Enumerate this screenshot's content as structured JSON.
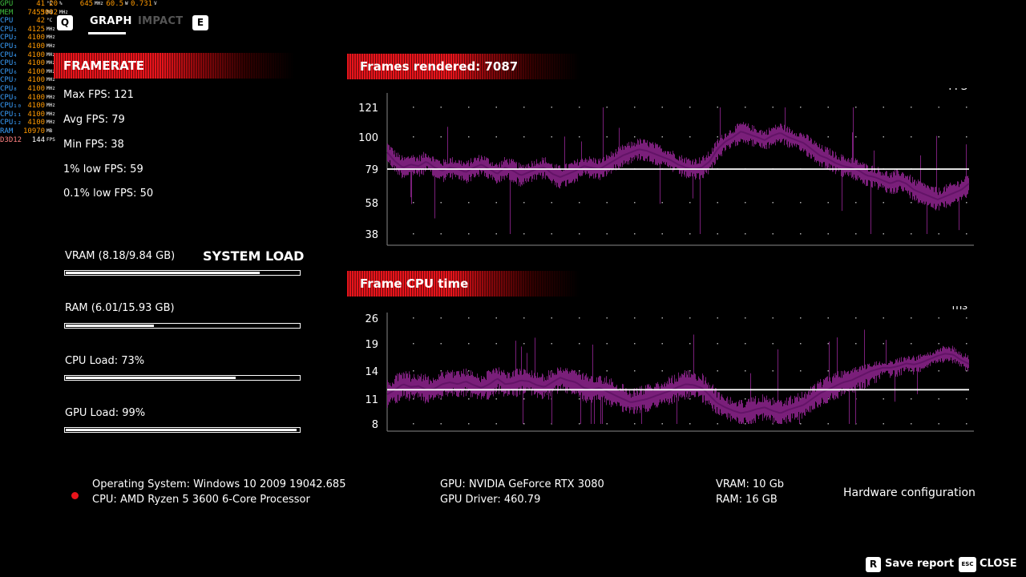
{
  "osd": {
    "rows": [
      {
        "label": "GPU",
        "label_color": "#3fbf3f",
        "v1": "41",
        "u1": "°C",
        "v2": "20",
        "u2": "%",
        "v3": "645",
        "u3": "MHz",
        "v4": "60.5",
        "u4": "W",
        "v5": "0.731",
        "u5": "V",
        "val_color": "#ff9900"
      },
      {
        "label": "MEM",
        "label_color": "#3fbf3f",
        "v1": "7453",
        "u1": "MB",
        "v2": "5002",
        "u2": "MHz",
        "v3": "",
        "u3": "",
        "v4": "",
        "u4": "",
        "v5": "",
        "u5": "",
        "val_color": "#ff9900"
      },
      {
        "label": "CPU",
        "label_color": "#3aa0ff",
        "v1": "42",
        "u1": "°C",
        "v2": "",
        "u2": "",
        "v3": "",
        "u3": "",
        "v4": "",
        "u4": "",
        "v5": "",
        "u5": "",
        "val_color": "#ff9900"
      },
      {
        "label": "CPU₁",
        "label_color": "#3aa0ff",
        "v1": "4125",
        "u1": "MHz",
        "v2": "",
        "u2": "",
        "v3": "",
        "u3": "",
        "v4": "",
        "u4": "",
        "v5": "",
        "u5": "",
        "val_color": "#ff9900"
      },
      {
        "label": "CPU₂",
        "label_color": "#3aa0ff",
        "v1": "4100",
        "u1": "MHz",
        "v2": "",
        "u2": "",
        "v3": "",
        "u3": "",
        "v4": "",
        "u4": "",
        "v5": "",
        "u5": "",
        "val_color": "#ff9900"
      },
      {
        "label": "CPU₃",
        "label_color": "#3aa0ff",
        "v1": "4100",
        "u1": "MHz",
        "v2": "",
        "u2": "",
        "v3": "",
        "u3": "",
        "v4": "",
        "u4": "",
        "v5": "",
        "u5": "",
        "val_color": "#ff9900"
      },
      {
        "label": "CPU₄",
        "label_color": "#3aa0ff",
        "v1": "4100",
        "u1": "MHz",
        "v2": "",
        "u2": "",
        "v3": "",
        "u3": "",
        "v4": "",
        "u4": "",
        "v5": "",
        "u5": "",
        "val_color": "#ff9900"
      },
      {
        "label": "CPU₅",
        "label_color": "#3aa0ff",
        "v1": "4100",
        "u1": "MHz",
        "v2": "",
        "u2": "",
        "v3": "",
        "u3": "",
        "v4": "",
        "u4": "",
        "v5": "",
        "u5": "",
        "val_color": "#ff9900"
      },
      {
        "label": "CPU₆",
        "label_color": "#3aa0ff",
        "v1": "4100",
        "u1": "MHz",
        "v2": "",
        "u2": "",
        "v3": "",
        "u3": "",
        "v4": "",
        "u4": "",
        "v5": "",
        "u5": "",
        "val_color": "#ff9900"
      },
      {
        "label": "CPU₇",
        "label_color": "#3aa0ff",
        "v1": "4100",
        "u1": "MHz",
        "v2": "",
        "u2": "",
        "v3": "",
        "u3": "",
        "v4": "",
        "u4": "",
        "v5": "",
        "u5": "",
        "val_color": "#ff9900"
      },
      {
        "label": "CPU₈",
        "label_color": "#3aa0ff",
        "v1": "4100",
        "u1": "MHz",
        "v2": "",
        "u2": "",
        "v3": "",
        "u3": "",
        "v4": "",
        "u4": "",
        "v5": "",
        "u5": "",
        "val_color": "#ff9900"
      },
      {
        "label": "CPU₉",
        "label_color": "#3aa0ff",
        "v1": "4100",
        "u1": "MHz",
        "v2": "",
        "u2": "",
        "v3": "",
        "u3": "",
        "v4": "",
        "u4": "",
        "v5": "",
        "u5": "",
        "val_color": "#ff9900"
      },
      {
        "label": "CPU₁₀",
        "label_color": "#3aa0ff",
        "v1": "4100",
        "u1": "MHz",
        "v2": "",
        "u2": "",
        "v3": "",
        "u3": "",
        "v4": "",
        "u4": "",
        "v5": "",
        "u5": "",
        "val_color": "#ff9900"
      },
      {
        "label": "CPU₁₁",
        "label_color": "#3aa0ff",
        "v1": "4100",
        "u1": "MHz",
        "v2": "",
        "u2": "",
        "v3": "",
        "u3": "",
        "v4": "",
        "u4": "",
        "v5": "",
        "u5": "",
        "val_color": "#ff9900"
      },
      {
        "label": "CPU₁₂",
        "label_color": "#3aa0ff",
        "v1": "4100",
        "u1": "MHz",
        "v2": "",
        "u2": "",
        "v3": "",
        "u3": "",
        "v4": "",
        "u4": "",
        "v5": "",
        "u5": "",
        "val_color": "#ff9900"
      },
      {
        "label": "RAM",
        "label_color": "#3aa0ff",
        "v1": "10970",
        "u1": "MB",
        "v2": "",
        "u2": "",
        "v3": "",
        "u3": "",
        "v4": "",
        "u4": "",
        "v5": "",
        "u5": "",
        "val_color": "#ff9900"
      },
      {
        "label": "D3D12",
        "label_color": "#ff8080",
        "v1": "144",
        "u1": "FPS",
        "v2": "",
        "u2": "",
        "v3": "",
        "u3": "",
        "v4": "",
        "u4": "",
        "v5": "",
        "u5": "",
        "val_color": "#ffffff"
      }
    ]
  },
  "tabs": {
    "prev_key": "Q",
    "graph": "GRAPH",
    "impact": "IMPACT",
    "next_key": "E"
  },
  "framerate": {
    "title": "FRAMERATE",
    "max": "Max FPS: 121",
    "avg": "Avg FPS: 79",
    "min": "Min FPS: 38",
    "low1": "1% low FPS: 59",
    "low01": "0.1% low FPS: 50"
  },
  "system_load": {
    "title": "SYSTEM LOAD",
    "items": [
      {
        "label": "VRAM (8.18/9.84 GB)",
        "fraction": 0.831
      },
      {
        "label": "RAM (6.01/15.93 GB)",
        "fraction": 0.377
      },
      {
        "label": "CPU Load: 73%",
        "fraction": 0.73
      },
      {
        "label": "GPU Load: 99%",
        "fraction": 0.99
      }
    ]
  },
  "colors": {
    "accent_red": "#e8141b",
    "graph_line": "#7a1f7a",
    "status_dot": "#e8141b"
  },
  "chart_data": [
    {
      "type": "line",
      "title": "Frames rendered: 7087",
      "ylabel": "FPS",
      "yticks": [
        38,
        58,
        79,
        100,
        121
      ],
      "ylim": [
        38,
        121
      ],
      "grid": "dotted",
      "average_line": 79,
      "series": [
        {
          "values": [
            90,
            84,
            80,
            82,
            81,
            84,
            80,
            78,
            80,
            79,
            77,
            80,
            82,
            79,
            76,
            80,
            78,
            75,
            77,
            79,
            80,
            76,
            74,
            76,
            78,
            81,
            80,
            79,
            82,
            85,
            88,
            90,
            92,
            91,
            89,
            87,
            85,
            82,
            80,
            79,
            80,
            84,
            92,
            97,
            100,
            104,
            102,
            100,
            98,
            101,
            103,
            100,
            98,
            96,
            92,
            88,
            86,
            83,
            81,
            80,
            78,
            75,
            74,
            72,
            70,
            72,
            70,
            66,
            64,
            62,
            60,
            62,
            64,
            66,
            70
          ]
        }
      ]
    },
    {
      "type": "line",
      "title": "Frame CPU time",
      "ylabel": "ms",
      "yticks": [
        8,
        11,
        14,
        19,
        26
      ],
      "ylim": [
        8,
        26
      ],
      "grid": "dotted",
      "average_line": 12,
      "series": [
        {
          "values": [
            11.5,
            12,
            12.6,
            12.3,
            12.4,
            12,
            12.1,
            12.6,
            12.8,
            12.6,
            12.9,
            12.5,
            12.2,
            12.6,
            13.2,
            12.6,
            12.7,
            13,
            12.9,
            12.5,
            12.3,
            12.8,
            13.3,
            13,
            12.8,
            12.2,
            12,
            12.2,
            11.8,
            11.4,
            11,
            10.6,
            10.8,
            11,
            11.3,
            11.6,
            11.9,
            12.3,
            12.6,
            12.5,
            12.2,
            11.4,
            10.5,
            10,
            9.6,
            9.3,
            9.5,
            9.8,
            10,
            9.6,
            9.3,
            9.7,
            10,
            10.3,
            11,
            11.6,
            12,
            12.4,
            12.8,
            13,
            13.4,
            13.8,
            14.2,
            14.6,
            14.6,
            14.9,
            15.4,
            15.2,
            15.6,
            16.2,
            16.8,
            17.2,
            17,
            16,
            15.3
          ]
        }
      ]
    }
  ],
  "hardware": {
    "os": "Operating System: Windows 10 2009 19042.685",
    "cpu": "CPU: AMD Ryzen 5 3600 6-Core Processor",
    "gpu": "GPU: NVIDIA GeForce RTX 3080",
    "driver": "GPU Driver: 460.79",
    "vram": "VRAM: 10 Gb",
    "ram": "RAM: 16 GB",
    "config_label": "Hardware configuration"
  },
  "footer": {
    "save_key": "R",
    "save_label": "Save report",
    "close_key": "ESC",
    "close_label": "CLOSE"
  }
}
